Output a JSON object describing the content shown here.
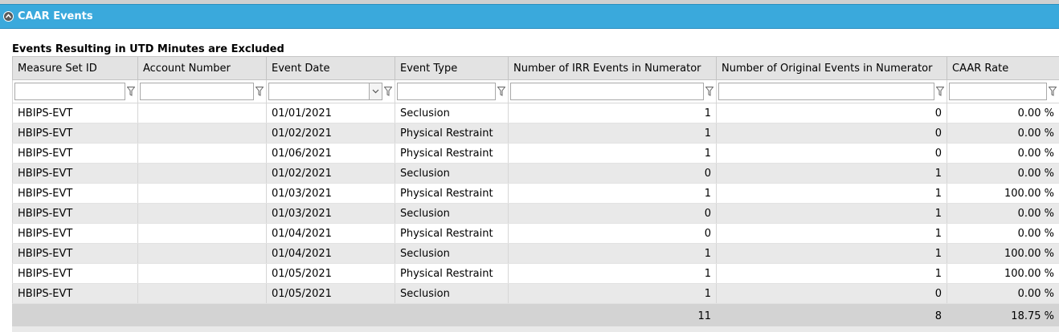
{
  "panel": {
    "title": "CAAR Events",
    "subtitle": "Events Resulting in UTD Minutes are Excluded"
  },
  "table": {
    "columns": [
      "Measure Set ID",
      "Account Number",
      "Event Date",
      "Event Type",
      "Number of IRR Events in Numerator",
      "Number of Original Events in Numerator",
      "CAAR Rate"
    ],
    "filters": [
      "",
      "",
      "",
      "",
      "",
      "",
      ""
    ],
    "rows": [
      {
        "measure_set_id": "HBIPS-EVT",
        "account_number": "",
        "event_date": "01/01/2021",
        "event_type": "Seclusion",
        "irr_events": "1",
        "original_events": "0",
        "caar_rate": "0.00 %"
      },
      {
        "measure_set_id": "HBIPS-EVT",
        "account_number": "",
        "event_date": "01/02/2021",
        "event_type": "Physical Restraint",
        "irr_events": "1",
        "original_events": "0",
        "caar_rate": "0.00 %"
      },
      {
        "measure_set_id": "HBIPS-EVT",
        "account_number": "",
        "event_date": "01/06/2021",
        "event_type": "Physical Restraint",
        "irr_events": "1",
        "original_events": "0",
        "caar_rate": "0.00 %"
      },
      {
        "measure_set_id": "HBIPS-EVT",
        "account_number": "",
        "event_date": "01/02/2021",
        "event_type": "Seclusion",
        "irr_events": "0",
        "original_events": "1",
        "caar_rate": "0.00 %"
      },
      {
        "measure_set_id": "HBIPS-EVT",
        "account_number": "",
        "event_date": "01/03/2021",
        "event_type": "Physical Restraint",
        "irr_events": "1",
        "original_events": "1",
        "caar_rate": "100.00 %"
      },
      {
        "measure_set_id": "HBIPS-EVT",
        "account_number": "",
        "event_date": "01/03/2021",
        "event_type": "Seclusion",
        "irr_events": "0",
        "original_events": "1",
        "caar_rate": "0.00 %"
      },
      {
        "measure_set_id": "HBIPS-EVT",
        "account_number": "",
        "event_date": "01/04/2021",
        "event_type": "Physical Restraint",
        "irr_events": "0",
        "original_events": "1",
        "caar_rate": "0.00 %"
      },
      {
        "measure_set_id": "HBIPS-EVT",
        "account_number": "",
        "event_date": "01/04/2021",
        "event_type": "Seclusion",
        "irr_events": "1",
        "original_events": "1",
        "caar_rate": "100.00 %"
      },
      {
        "measure_set_id": "HBIPS-EVT",
        "account_number": "",
        "event_date": "01/05/2021",
        "event_type": "Physical Restraint",
        "irr_events": "1",
        "original_events": "1",
        "caar_rate": "100.00 %"
      },
      {
        "measure_set_id": "HBIPS-EVT",
        "account_number": "",
        "event_date": "01/05/2021",
        "event_type": "Seclusion",
        "irr_events": "1",
        "original_events": "0",
        "caar_rate": "0.00 %"
      }
    ],
    "totals": {
      "irr_events": "11",
      "original_events": "8",
      "caar_rate": "18.75 %"
    }
  },
  "icons": {
    "collapse": "collapse-up-icon",
    "filter": "filter-icon",
    "dropdown": "chevron-down-icon"
  },
  "colors": {
    "header_bar": "#3aa9dc",
    "column_header": "#e3e3e3",
    "alt_row": "#e9e9e9",
    "footer": "#d3d3d3"
  }
}
